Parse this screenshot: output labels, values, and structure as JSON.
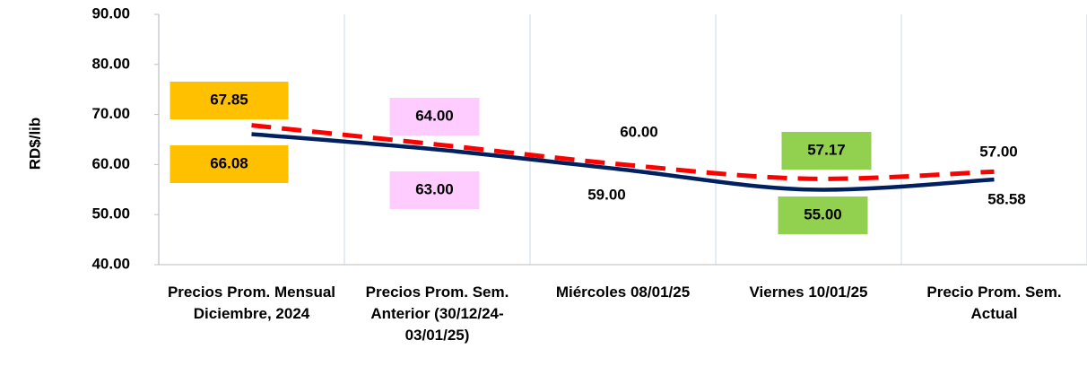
{
  "chart_data": {
    "type": "line",
    "y_label": "RD$/lib",
    "categories": [
      "Precios Prom. Mensual Diciembre, 2024",
      "Precios Prom. Sem. Anterior (30/12/24-03/01/25)",
      "Miércoles 08/01/25",
      "Viernes 10/01/25",
      "Precio Prom. Sem. Actual"
    ],
    "series": [
      {
        "color": "#ff0000",
        "dashed": true,
        "values": [
          67.85,
          64,
          60,
          57.17,
          58.58
        ],
        "value_labels": [
          "67.85",
          "64.00",
          "60.00",
          "57.17",
          "58.58"
        ]
      },
      {
        "color": "#002060",
        "dashed": false,
        "values": [
          66.08,
          63,
          59,
          55,
          57
        ],
        "value_labels": [
          "66.08",
          "63.00",
          "59.00",
          "55.00",
          "57.00"
        ]
      }
    ],
    "label_box_colors": [
      "#ffc000",
      "#ffccff",
      null,
      "#92d050",
      null
    ],
    "ylim": [
      40,
      90
    ],
    "yticks": [
      {
        "value": 40,
        "label": "40.00"
      },
      {
        "value": 50,
        "label": "50.00"
      },
      {
        "value": 60,
        "label": "60.00"
      },
      {
        "value": 70,
        "label": "70.00"
      },
      {
        "value": 80,
        "label": "80.00"
      },
      {
        "value": 90,
        "label": "90.00"
      }
    ],
    "grid": true
  }
}
